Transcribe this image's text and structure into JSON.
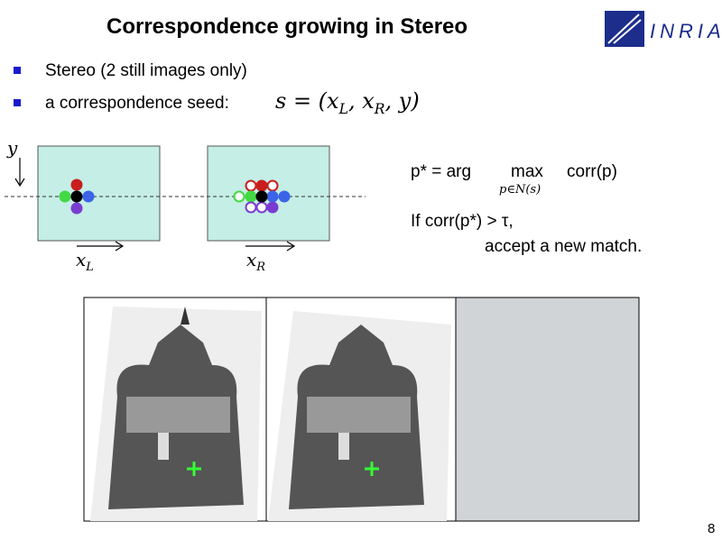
{
  "slide": {
    "title": "Correspondence growing in Stereo",
    "logo": "INRIA",
    "bullets": [
      "Stereo (2 still images only)",
      "a correspondence seed:"
    ],
    "seed_formula": [
      "s = (x",
      "L",
      ", x",
      "R",
      ", y)"
    ],
    "axis_y": "y",
    "axis_xl": [
      "x",
      "L"
    ],
    "axis_xr": [
      "x",
      "R"
    ],
    "argmax": {
      "lhs": "p* = arg",
      "op": "max",
      "sub": "p∈N(s)",
      "rhs": "corr(p)"
    },
    "condition": "If corr(p*) > τ,",
    "action": "accept a new match.",
    "page_number": "8"
  }
}
